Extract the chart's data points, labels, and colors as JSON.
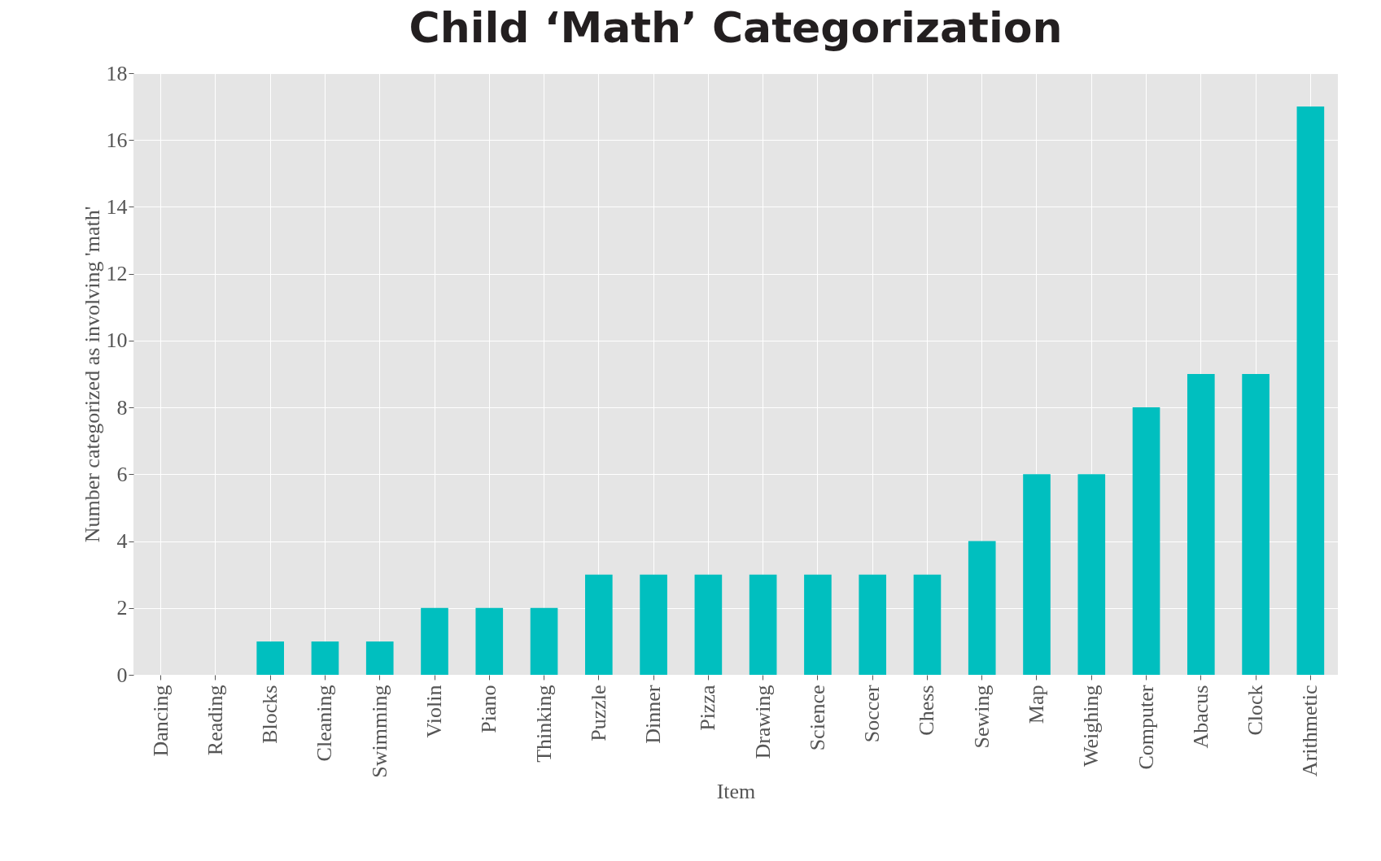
{
  "chart_data": {
    "type": "bar",
    "title": "Child ‘Math’ Categorization",
    "xlabel": "Item",
    "ylabel": "Number categorized as involving 'math'",
    "categories": [
      "Dancing",
      "Reading",
      "Blocks",
      "Cleaning",
      "Swimming",
      "Violin",
      "Piano",
      "Thinking",
      "Puzzle",
      "Dinner",
      "Pizza",
      "Drawing",
      "Science",
      "Soccer",
      "Chess",
      "Sewing",
      "Map",
      "Weighing",
      "Computer",
      "Abacus",
      "Clock",
      "Arithmetic"
    ],
    "values": [
      0,
      0,
      1,
      1,
      1,
      2,
      2,
      2,
      3,
      3,
      3,
      3,
      3,
      3,
      3,
      4,
      6,
      6,
      8,
      9,
      9,
      17
    ],
    "color": "#00bfbf",
    "ylim": [
      0,
      18
    ],
    "yticks": [
      0,
      2,
      4,
      6,
      8,
      10,
      12,
      14,
      16,
      18
    ],
    "grid": true
  }
}
